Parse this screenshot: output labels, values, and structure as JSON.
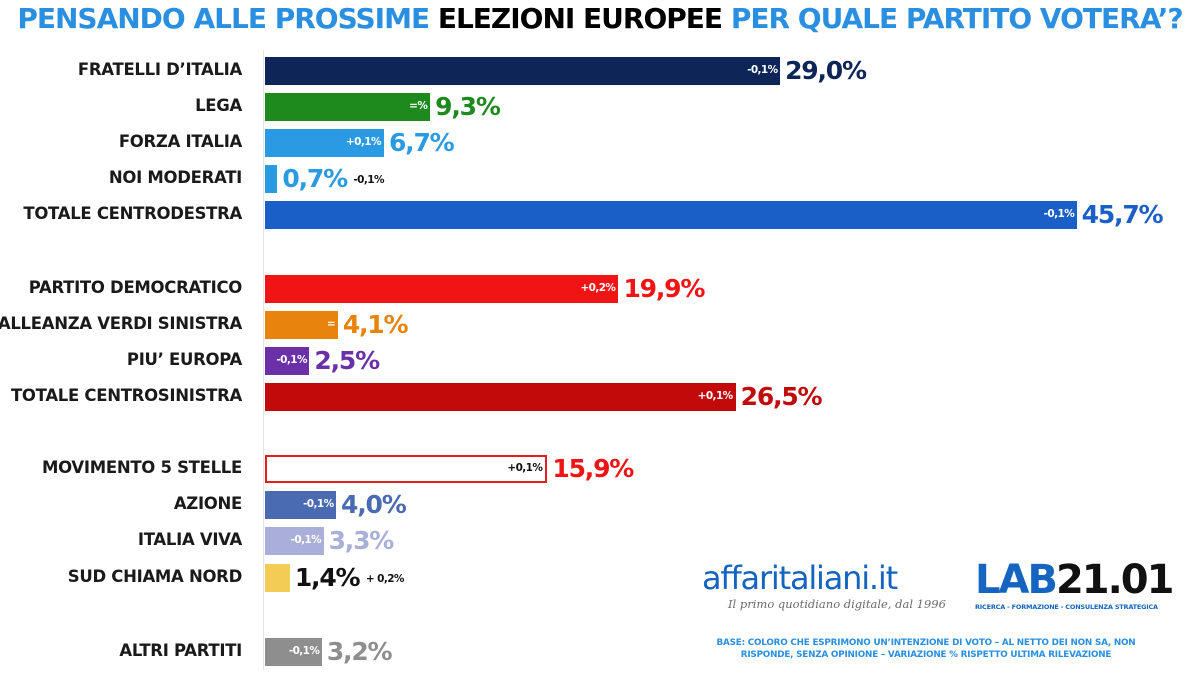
{
  "title": {
    "part1": "PENSANDO ALLE PROSSIME",
    "part2": "ELEZIONI EUROPEE",
    "part3": "PER QUALE PARTITO VOTERA’?"
  },
  "chart_data": {
    "type": "bar",
    "orientation": "horizontal",
    "title": "PENSANDO ALLE PROSSIME ELEZIONI EUROPEE PER QUALE PARTITO VOTERA’?",
    "xlim": [
      0,
      46
    ],
    "categories": [
      "FRATELLI D’ITALIA",
      "LEGA",
      "FORZA ITALIA",
      "NOI MODERATI",
      "TOTALE CENTRODESTRA",
      "PARTITO DEMOCRATICO",
      "ALLEANZA VERDI SINISTRA",
      "PIU’ EUROPA",
      "TOTALE CENTROSINISTRA",
      "MOVIMENTO 5 STELLE",
      "AZIONE",
      "ITALIA VIVA",
      "SUD CHIAMA NORD",
      "ALTRI PARTITI"
    ],
    "values": [
      29.0,
      9.3,
      6.7,
      0.7,
      45.7,
      19.9,
      4.1,
      2.5,
      26.5,
      15.9,
      4.0,
      3.3,
      1.4,
      3.2
    ],
    "value_labels": [
      "29,0%",
      "9,3%",
      "6,7%",
      "0,7%",
      "45,7%",
      "19,9%",
      "4,1%",
      "2,5%",
      "26,5%",
      "15,9%",
      "4,0%",
      "3,3%",
      "1,4%",
      "3,2%"
    ],
    "change_labels": [
      "-0,1%",
      "=%",
      "+0,1%",
      "-0,1%",
      "-0,1%",
      "+0,2%",
      "=",
      "-0,1%",
      "+0,1%",
      "+0,1%",
      "-0,1%",
      "-0,1%",
      "+ 0,2%",
      "-0,1%"
    ],
    "bar_colors": [
      "#0d2557",
      "#1e8a1e",
      "#2a9be3",
      "#2a9be3",
      "#1a5fc8",
      "#f01414",
      "#e8830c",
      "#6b2fa8",
      "#c20a0a",
      "#ffffff",
      "#4a6ab2",
      "#a9afd8",
      "#f2cc55",
      "#8e8e8e"
    ],
    "value_colors": [
      "#0d2557",
      "#1e8a1e",
      "#2a9be3",
      "#2a9be3",
      "#1a5fc8",
      "#f01414",
      "#e8830c",
      "#6b2fa8",
      "#c20a0a",
      "#f01414",
      "#4a6ab2",
      "#a9afd8",
      "#111111",
      "#8e8e8e"
    ],
    "bar_border_colors": [
      "",
      "",
      "",
      "",
      "",
      "",
      "",
      "",
      "",
      "#e02020",
      "",
      "",
      "",
      ""
    ],
    "change_inside": [
      true,
      true,
      true,
      false,
      true,
      true,
      true,
      true,
      true,
      true,
      true,
      true,
      false,
      true
    ],
    "groups": [
      [
        0,
        4
      ],
      [
        5,
        8
      ],
      [
        9,
        12
      ],
      [
        13,
        13
      ]
    ]
  },
  "brand": {
    "name": "affaritaliani.it",
    "tagline": "Il primo quotidiano digitale, dal 1996"
  },
  "lab": {
    "logo_part1": "LAB",
    "logo_part2": "21.01",
    "tagline": "RICERCA - FORMAZIONE - CONSULENZA STRATEGICA"
  },
  "footnote": "BASE: COLORO CHE ESPRIMONO UN’INTENZIONE DI VOTO – AL NETTO DEI NON SA, NON RISPONDE, SENZA OPINIONE – VARIAZIONE % RISPETTO ULTIMA RILEVAZIONE"
}
